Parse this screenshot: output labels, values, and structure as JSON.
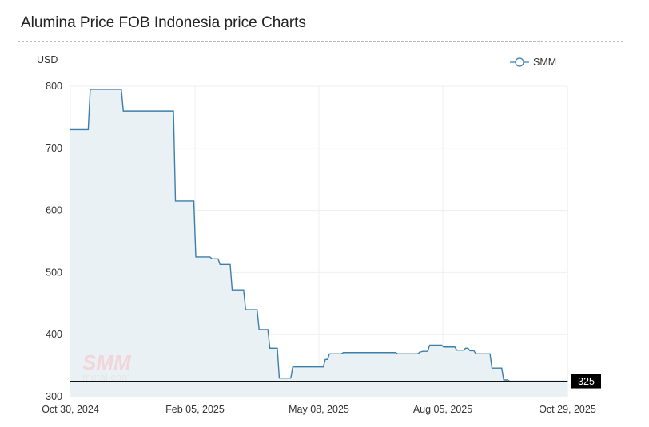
{
  "header": {
    "title": "Alumina Price FOB Indonesia price Charts"
  },
  "chart_data": {
    "type": "line",
    "title": "Alumina Price FOB Indonesia price Charts",
    "ylabel": "USD",
    "xlabel": "",
    "ylim": [
      300,
      800
    ],
    "yticks": [
      "300",
      "400",
      "500",
      "600",
      "700",
      "800"
    ],
    "xticks": [
      "Oct 30, 2024",
      "Feb 05, 2025",
      "May 08, 2025",
      "Aug 05, 2025",
      "Oct 29, 2025"
    ],
    "grid": true,
    "legend": {
      "position": "top-right",
      "entries": [
        "SMM"
      ]
    },
    "watermark": "SMM metal.com",
    "current_value_label": "325",
    "line_style": "step",
    "colors": {
      "line": "#3b7eab",
      "fill": "#eaf1f5",
      "current_line": "#111111"
    },
    "series": [
      {
        "name": "SMM",
        "points": [
          [
            "2024-10-30",
            730
          ],
          [
            "2024-11-14",
            795
          ],
          [
            "2024-12-10",
            760
          ],
          [
            "2025-01-20",
            615
          ],
          [
            "2025-02-05",
            525
          ],
          [
            "2025-02-17",
            522
          ],
          [
            "2025-02-23",
            513
          ],
          [
            "2025-03-04",
            472
          ],
          [
            "2025-03-14",
            440
          ],
          [
            "2025-03-24",
            408
          ],
          [
            "2025-04-01",
            378
          ],
          [
            "2025-04-08",
            330
          ],
          [
            "2025-04-18",
            348
          ],
          [
            "2025-05-12",
            360
          ],
          [
            "2025-05-15",
            369
          ],
          [
            "2025-05-25",
            371
          ],
          [
            "2025-07-03",
            369
          ],
          [
            "2025-07-19",
            372
          ],
          [
            "2025-07-21",
            373
          ],
          [
            "2025-07-26",
            383
          ],
          [
            "2025-08-05",
            380
          ],
          [
            "2025-08-14",
            375
          ],
          [
            "2025-08-20",
            378
          ],
          [
            "2025-08-23",
            374
          ],
          [
            "2025-08-27",
            369
          ],
          [
            "2025-09-07",
            346
          ],
          [
            "2025-09-15",
            327
          ],
          [
            "2025-09-19",
            325
          ],
          [
            "2025-10-29",
            325
          ]
        ]
      }
    ]
  }
}
